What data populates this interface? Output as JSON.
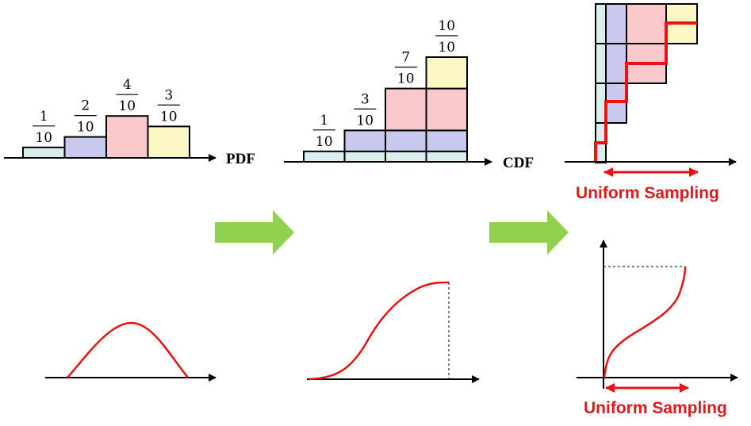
{
  "colors": {
    "bin1": "#dbeeee",
    "bin2": "#c9c9ef",
    "bin3": "#f9c9cc",
    "bin4": "#fbf8c3",
    "red": "#ee1111",
    "arrow_green": "#92d050",
    "axis": "#000000"
  },
  "pdf": {
    "axis_label": "PDF",
    "bins": [
      {
        "num": "1",
        "den": "10",
        "value": 1
      },
      {
        "num": "2",
        "den": "10",
        "value": 2
      },
      {
        "num": "4",
        "den": "10",
        "value": 4
      },
      {
        "num": "3",
        "den": "10",
        "value": 3
      }
    ]
  },
  "cdf": {
    "axis_label": "CDF",
    "steps": [
      {
        "num": "1",
        "den": "10",
        "value": 1
      },
      {
        "num": "3",
        "den": "10",
        "value": 3
      },
      {
        "num": "7",
        "den": "10",
        "value": 7
      },
      {
        "num": "10",
        "den": "10",
        "value": 10
      }
    ]
  },
  "inverse": {
    "label_top": "Uniform Sampling",
    "label_bottom": "Uniform Sampling"
  },
  "transition_arrows": [
    "pdf-to-cdf",
    "cdf-to-inverse"
  ]
}
